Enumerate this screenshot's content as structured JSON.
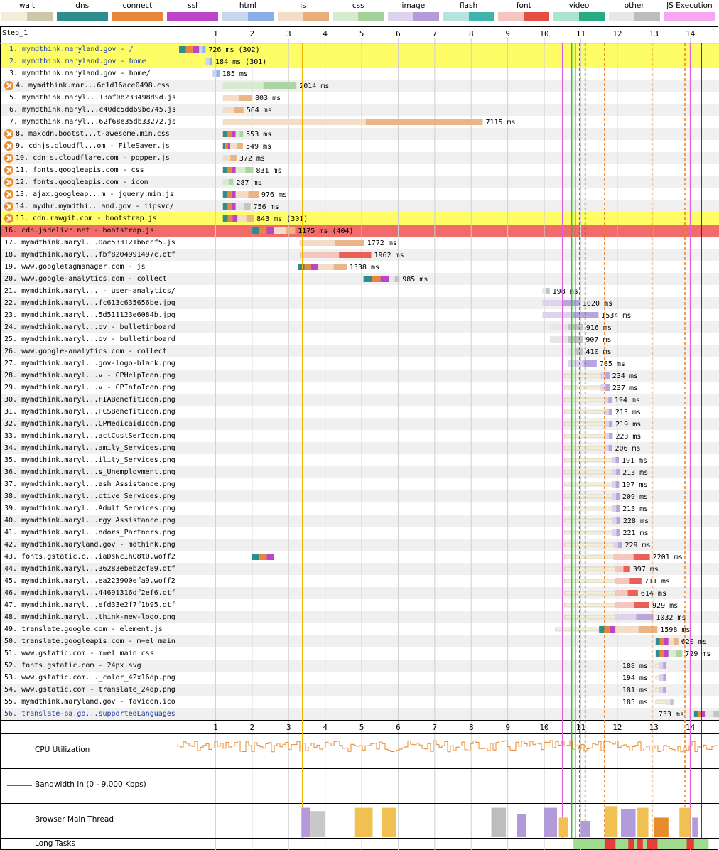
{
  "legend": [
    {
      "label": "wait",
      "color": "#f3eedc",
      "color2": "#cdc6a8"
    },
    {
      "label": "dns",
      "color": "#2d8d8d",
      "color2": "#2d8d8d"
    },
    {
      "label": "connect",
      "color": "#e8873a",
      "color2": "#e8873a"
    },
    {
      "label": "ssl",
      "color": "#bb44c8",
      "color2": "#bb44c8"
    },
    {
      "label": "html",
      "color": "#c8d6ef",
      "color2": "#8aaee6"
    },
    {
      "label": "js",
      "color": "#f4ddc6",
      "color2": "#e8ad79"
    },
    {
      "label": "css",
      "color": "#d7ebcf",
      "color2": "#a5d19b"
    },
    {
      "label": "image",
      "color": "#ddd3ec",
      "color2": "#b39bd9"
    },
    {
      "label": "flash",
      "color": "#b5e4e1",
      "color2": "#40b4ac"
    },
    {
      "label": "font",
      "color": "#f5c6c0",
      "color2": "#e74d43"
    },
    {
      "label": "video",
      "color": "#aee3cd",
      "color2": "#28aa84"
    },
    {
      "label": "other",
      "color": "#e7e7e7",
      "color2": "#bdbdbd"
    },
    {
      "label": "JS Execution",
      "color": "#f7a6f1",
      "color2": "#f7a6f1"
    }
  ],
  "step_label": "Step_1",
  "rows": [
    {
      "label": "1. mymdthink.maryland.gov - /",
      "hl": "yellow",
      "blue": true,
      "icon": false
    },
    {
      "label": "2. mymdthink.maryland.gov - home",
      "hl": "yellow",
      "blue": true,
      "icon": false
    },
    {
      "label": "3. mymdthink.maryland.gov - home/",
      "hl": "",
      "blue": false,
      "icon": false
    },
    {
      "label": "4. mymdthink.mar...6c1d16ace0498.css",
      "hl": "",
      "blue": false,
      "icon": true
    },
    {
      "label": "5. mymdthink.maryl...13af0b233498d9d.js",
      "hl": "",
      "blue": false,
      "icon": false
    },
    {
      "label": "6. mymdthink.maryl...c40dc5dd69be745.js",
      "hl": "",
      "blue": false,
      "icon": false
    },
    {
      "label": "7. mymdthink.maryl...62f68e35db33272.js",
      "hl": "",
      "blue": false,
      "icon": false
    },
    {
      "label": "8. maxcdn.bootst...t-awesome.min.css",
      "hl": "",
      "blue": false,
      "icon": true
    },
    {
      "label": "9. cdnjs.cloudfl...om - FileSaver.js",
      "hl": "",
      "blue": false,
      "icon": true
    },
    {
      "label": "10. cdnjs.cloudflare.com - popper.js",
      "hl": "",
      "blue": false,
      "icon": true
    },
    {
      "label": "11. fonts.googleapis.com - css",
      "hl": "",
      "blue": false,
      "icon": true
    },
    {
      "label": "12. fonts.googleapis.com - icon",
      "hl": "",
      "blue": false,
      "icon": true
    },
    {
      "label": "13. ajax.googleap...m - jquery.min.js",
      "hl": "",
      "blue": false,
      "icon": true
    },
    {
      "label": "14. mydhr.mymdthi...and.gov - iipsvc/",
      "hl": "",
      "blue": false,
      "icon": true
    },
    {
      "label": "15. cdn.rawgit.com - bootstrap.js",
      "hl": "yellow",
      "blue": false,
      "icon": true
    },
    {
      "label": "16. cdn.jsdelivr.net - bootstrap.js",
      "hl": "red",
      "blue": false,
      "icon": false
    },
    {
      "label": "17. mymdthink.maryl...0ae533121b6ccf5.js",
      "hl": "",
      "blue": false,
      "icon": false
    },
    {
      "label": "18. mymdthink.maryl...fbf8204991497c.otf",
      "hl": "",
      "blue": false,
      "icon": false
    },
    {
      "label": "19. www.googletagmanager.com - js",
      "hl": "",
      "blue": false,
      "icon": false
    },
    {
      "label": "20. www.google-analytics.com - collect",
      "hl": "",
      "blue": false,
      "icon": false
    },
    {
      "label": "21. mymdthink.maryl... - user-analytics/",
      "hl": "",
      "blue": false,
      "icon": false
    },
    {
      "label": "22. mymdthink.maryl...fc613c635656be.jpg",
      "hl": "",
      "blue": false,
      "icon": false
    },
    {
      "label": "23. mymdthink.maryl...5d511123e6084b.jpg",
      "hl": "",
      "blue": false,
      "icon": false
    },
    {
      "label": "24. mymdthink.maryl...ov - bulletinboard",
      "hl": "",
      "blue": false,
      "icon": false
    },
    {
      "label": "25. mymdthink.maryl...ov - bulletinboard",
      "hl": "",
      "blue": false,
      "icon": false
    },
    {
      "label": "26. www.google-analytics.com - collect",
      "hl": "",
      "blue": false,
      "icon": false
    },
    {
      "label": "27. mymdthink.maryl...gov-logo-black.png",
      "hl": "",
      "blue": false,
      "icon": false
    },
    {
      "label": "28. mymdthink.maryl...v - CPHelpIcon.png",
      "hl": "",
      "blue": false,
      "icon": false
    },
    {
      "label": "29. mymdthink.maryl...v - CPInfoIcon.png",
      "hl": "",
      "blue": false,
      "icon": false
    },
    {
      "label": "30. mymdthink.maryl...FIABenefitIcon.png",
      "hl": "",
      "blue": false,
      "icon": false
    },
    {
      "label": "31. mymdthink.maryl...PCSBenefitIcon.png",
      "hl": "",
      "blue": false,
      "icon": false
    },
    {
      "label": "32. mymdthink.maryl...CPMedicaidIcon.png",
      "hl": "",
      "blue": false,
      "icon": false
    },
    {
      "label": "33. mymdthink.maryl...actCustSerIcon.png",
      "hl": "",
      "blue": false,
      "icon": false
    },
    {
      "label": "34. mymdthink.maryl...amily_Services.png",
      "hl": "",
      "blue": false,
      "icon": false
    },
    {
      "label": "35. mymdthink.maryl...ility_Services.png",
      "hl": "",
      "blue": false,
      "icon": false
    },
    {
      "label": "36. mymdthink.maryl...s_Unemployment.png",
      "hl": "",
      "blue": false,
      "icon": false
    },
    {
      "label": "37. mymdthink.maryl...ash_Assistance.png",
      "hl": "",
      "blue": false,
      "icon": false
    },
    {
      "label": "38. mymdthink.maryl...ctive_Services.png",
      "hl": "",
      "blue": false,
      "icon": false
    },
    {
      "label": "39. mymdthink.maryl...Adult_Services.png",
      "hl": "",
      "blue": false,
      "icon": false
    },
    {
      "label": "40. mymdthink.maryl...rgy_Assistance.png",
      "hl": "",
      "blue": false,
      "icon": false
    },
    {
      "label": "41. mymdthink.maryl...ndors_Partners.png",
      "hl": "",
      "blue": false,
      "icon": false
    },
    {
      "label": "42. mymdthink.maryland.gov - mdthink.png",
      "hl": "",
      "blue": false,
      "icon": false
    },
    {
      "label": "43. fonts.gstatic.c...iaDsNcIhQ8tQ.woff2",
      "hl": "",
      "blue": false,
      "icon": false
    },
    {
      "label": "44. mymdthink.maryl...36283ebeb2cf89.otf",
      "hl": "",
      "blue": false,
      "icon": false
    },
    {
      "label": "45. mymdthink.maryl...ea223900efa9.woff2",
      "hl": "",
      "blue": false,
      "icon": false
    },
    {
      "label": "46. mymdthink.maryl...44691316df2ef6.otf",
      "hl": "",
      "blue": false,
      "icon": false
    },
    {
      "label": "47. mymdthink.maryl...efd33e2f7f1b95.otf",
      "hl": "",
      "blue": false,
      "icon": false
    },
    {
      "label": "48. mymdthink.maryl...think-new-logo.png",
      "hl": "",
      "blue": false,
      "icon": false
    },
    {
      "label": "49. translate.google.com - element.js",
      "hl": "",
      "blue": false,
      "icon": false
    },
    {
      "label": "50. translate.googleapis.com - m=el_main",
      "hl": "",
      "blue": false,
      "icon": false
    },
    {
      "label": "51. www.gstatic.com - m=el_main_css",
      "hl": "",
      "blue": false,
      "icon": false
    },
    {
      "label": "52. fonts.gstatic.com - 24px.svg",
      "hl": "",
      "blue": false,
      "icon": false
    },
    {
      "label": "53. www.gstatic.com..._color_42x16dp.png",
      "hl": "",
      "blue": false,
      "icon": false
    },
    {
      "label": "54. www.gstatic.com - translate_24dp.png",
      "hl": "",
      "blue": false,
      "icon": false
    },
    {
      "label": "55. mymdthink.maryland.gov - favicon.ico",
      "hl": "",
      "blue": false,
      "icon": false
    },
    {
      "label": "56. translate-pa.go...supportedLanguages",
      "hl": "",
      "blue": true,
      "icon": false
    }
  ],
  "chart_data": {
    "type": "waterfall",
    "x_unit": "s",
    "xlim": [
      0,
      14.5
    ],
    "x_ticks": [
      1,
      2,
      3,
      4,
      5,
      6,
      7,
      8,
      9,
      10,
      11,
      12,
      13,
      14
    ],
    "requests": [
      {
        "start": 0.0,
        "ms": 726,
        "status": "302",
        "type": "html",
        "conn": [
          0.0,
          0.55
        ]
      },
      {
        "start": 0.73,
        "ms": 184,
        "status": "301",
        "type": "html"
      },
      {
        "start": 0.92,
        "ms": 185,
        "status": "",
        "type": "html"
      },
      {
        "start": 1.2,
        "ms": 2014,
        "status": "",
        "type": "css"
      },
      {
        "start": 1.2,
        "ms": 803,
        "status": "",
        "type": "js"
      },
      {
        "start": 1.2,
        "ms": 564,
        "status": "",
        "type": "js"
      },
      {
        "start": 1.2,
        "ms": 7115,
        "status": "",
        "type": "js"
      },
      {
        "start": 1.2,
        "ms": 553,
        "status": "",
        "type": "css",
        "conn": [
          1.2,
          1.55
        ]
      },
      {
        "start": 1.2,
        "ms": 549,
        "status": "",
        "type": "js",
        "conn": [
          1.2,
          1.4
        ]
      },
      {
        "start": 1.2,
        "ms": 372,
        "status": "",
        "type": "js"
      },
      {
        "start": 1.2,
        "ms": 831,
        "status": "",
        "type": "css",
        "conn": [
          1.2,
          1.55
        ]
      },
      {
        "start": 1.2,
        "ms": 287,
        "status": "",
        "type": "css"
      },
      {
        "start": 1.2,
        "ms": 976,
        "status": "",
        "type": "js",
        "conn": [
          1.2,
          1.55
        ]
      },
      {
        "start": 1.2,
        "ms": 756,
        "status": "",
        "type": "other",
        "conn": [
          1.2,
          1.55
        ]
      },
      {
        "start": 1.2,
        "ms": 843,
        "status": "301",
        "type": "js",
        "conn": [
          1.2,
          1.6
        ]
      },
      {
        "start": 2.0,
        "ms": 1175,
        "status": "404",
        "type": "js",
        "conn": [
          2.0,
          2.6
        ]
      },
      {
        "start": 3.3,
        "ms": 1772,
        "status": "",
        "type": "js"
      },
      {
        "start": 3.3,
        "ms": 1962,
        "status": "",
        "type": "font"
      },
      {
        "start": 3.25,
        "ms": 1338,
        "status": "",
        "type": "js",
        "conn": [
          3.25,
          3.8
        ]
      },
      {
        "start": 5.05,
        "ms": 985,
        "status": "",
        "type": "other",
        "conn": [
          5.05,
          5.75
        ]
      },
      {
        "start": 9.95,
        "ms": 198,
        "status": "",
        "type": "other"
      },
      {
        "start": 9.95,
        "ms": 1020,
        "status": "",
        "type": "image"
      },
      {
        "start": 9.95,
        "ms": 1534,
        "status": "",
        "type": "image"
      },
      {
        "start": 10.15,
        "ms": 916,
        "status": "",
        "type": "other"
      },
      {
        "start": 10.15,
        "ms": 907,
        "status": "",
        "type": "other"
      },
      {
        "start": 10.65,
        "ms": 410,
        "status": "",
        "type": "other"
      },
      {
        "start": 10.65,
        "ms": 785,
        "status": "",
        "type": "image"
      },
      {
        "start": 10.55,
        "ms": 234,
        "status": "",
        "type": "image",
        "wait": 1.0
      },
      {
        "start": 10.55,
        "ms": 237,
        "status": "",
        "type": "image",
        "wait": 1.0
      },
      {
        "start": 10.55,
        "ms": 194,
        "status": "",
        "type": "image",
        "wait": 1.1
      },
      {
        "start": 10.55,
        "ms": 213,
        "status": "",
        "type": "image",
        "wait": 1.1
      },
      {
        "start": 10.55,
        "ms": 219,
        "status": "",
        "type": "image",
        "wait": 1.1
      },
      {
        "start": 10.55,
        "ms": 223,
        "status": "",
        "type": "image",
        "wait": 1.1
      },
      {
        "start": 10.55,
        "ms": 206,
        "status": "",
        "type": "image",
        "wait": 1.1
      },
      {
        "start": 10.55,
        "ms": 191,
        "status": "",
        "type": "image",
        "wait": 1.3
      },
      {
        "start": 10.55,
        "ms": 213,
        "status": "",
        "type": "image",
        "wait": 1.3
      },
      {
        "start": 10.55,
        "ms": 197,
        "status": "",
        "type": "image",
        "wait": 1.3
      },
      {
        "start": 10.55,
        "ms": 209,
        "status": "",
        "type": "image",
        "wait": 1.3
      },
      {
        "start": 10.55,
        "ms": 213,
        "status": "",
        "type": "image",
        "wait": 1.3
      },
      {
        "start": 10.55,
        "ms": 228,
        "status": "",
        "type": "image",
        "wait": 1.3
      },
      {
        "start": 10.55,
        "ms": 221,
        "status": "",
        "type": "image",
        "wait": 1.3
      },
      {
        "start": 10.55,
        "ms": 229,
        "status": "",
        "type": "image",
        "wait": 1.35
      },
      {
        "start": 11.9,
        "ms": 2201,
        "status": "",
        "type": "font",
        "wait": 0,
        "conn": [
          2.0,
          2.6
        ],
        "pre": [
          10.55,
          11.9
        ]
      },
      {
        "start": 10.55,
        "ms": 397,
        "status": "",
        "type": "font",
        "wait": 1.4
      },
      {
        "start": 10.55,
        "ms": 711,
        "status": "",
        "type": "font",
        "wait": 1.4
      },
      {
        "start": 10.55,
        "ms": 614,
        "status": "",
        "type": "font",
        "wait": 1.4
      },
      {
        "start": 10.55,
        "ms": 929,
        "status": "",
        "type": "font",
        "wait": 1.4
      },
      {
        "start": 10.55,
        "ms": 1032,
        "status": "",
        "type": "image",
        "wait": 1.4
      },
      {
        "start": 10.3,
        "ms": 1598,
        "status": "",
        "type": "js",
        "wait": 1.2,
        "conn2": [
          11.5,
          11.95
        ]
      },
      {
        "start": 13.05,
        "ms": 620,
        "status": "",
        "type": "js",
        "conn": [
          13.05,
          13.4
        ]
      },
      {
        "start": 13.05,
        "ms": 729,
        "status": "",
        "type": "css",
        "conn": [
          13.05,
          13.4
        ]
      },
      {
        "start": 13.05,
        "ms": 188,
        "status": "",
        "type": "image",
        "wait": 0.1
      },
      {
        "start": 13.05,
        "ms": 194,
        "status": "",
        "type": "image",
        "wait": 0.1
      },
      {
        "start": 13.05,
        "ms": 181,
        "status": "",
        "type": "image",
        "wait": 0.1
      },
      {
        "start": 13.05,
        "ms": 185,
        "status": "",
        "type": "other",
        "wait": 0.3
      },
      {
        "start": 14.1,
        "ms": 733,
        "status": "",
        "type": "other",
        "conn": [
          14.1,
          14.4
        ]
      }
    ],
    "markers": [
      {
        "t": 3.38,
        "color": "#f0b400",
        "style": "solid"
      },
      {
        "t": 10.5,
        "color": "#e05de0",
        "style": "solid"
      },
      {
        "t": 10.75,
        "color": "#28c428",
        "style": "solid"
      },
      {
        "t": 10.85,
        "color": "#28c428",
        "style": "solid"
      },
      {
        "t": 10.97,
        "color": "#1a8a1a",
        "style": "dashed"
      },
      {
        "t": 11.12,
        "color": "#1a8a1a",
        "style": "dashed"
      },
      {
        "t": 11.65,
        "color": "#f08020",
        "style": "dashed"
      },
      {
        "t": 12.95,
        "color": "#f08020",
        "style": "dashed"
      },
      {
        "t": 13.85,
        "color": "#f08020",
        "style": "dashed"
      },
      {
        "t": 14.0,
        "color": "#e05de0",
        "style": "solid"
      },
      {
        "t": 14.3,
        "color": "#1a1aa0",
        "style": "solid"
      }
    ],
    "cpu_label": "CPU Utilization",
    "bandwidth_label": "Bandwidth In (0 - 9,000 Kbps)",
    "main_thread_label": "Browser Main Thread",
    "long_tasks_label": "Long Tasks"
  }
}
